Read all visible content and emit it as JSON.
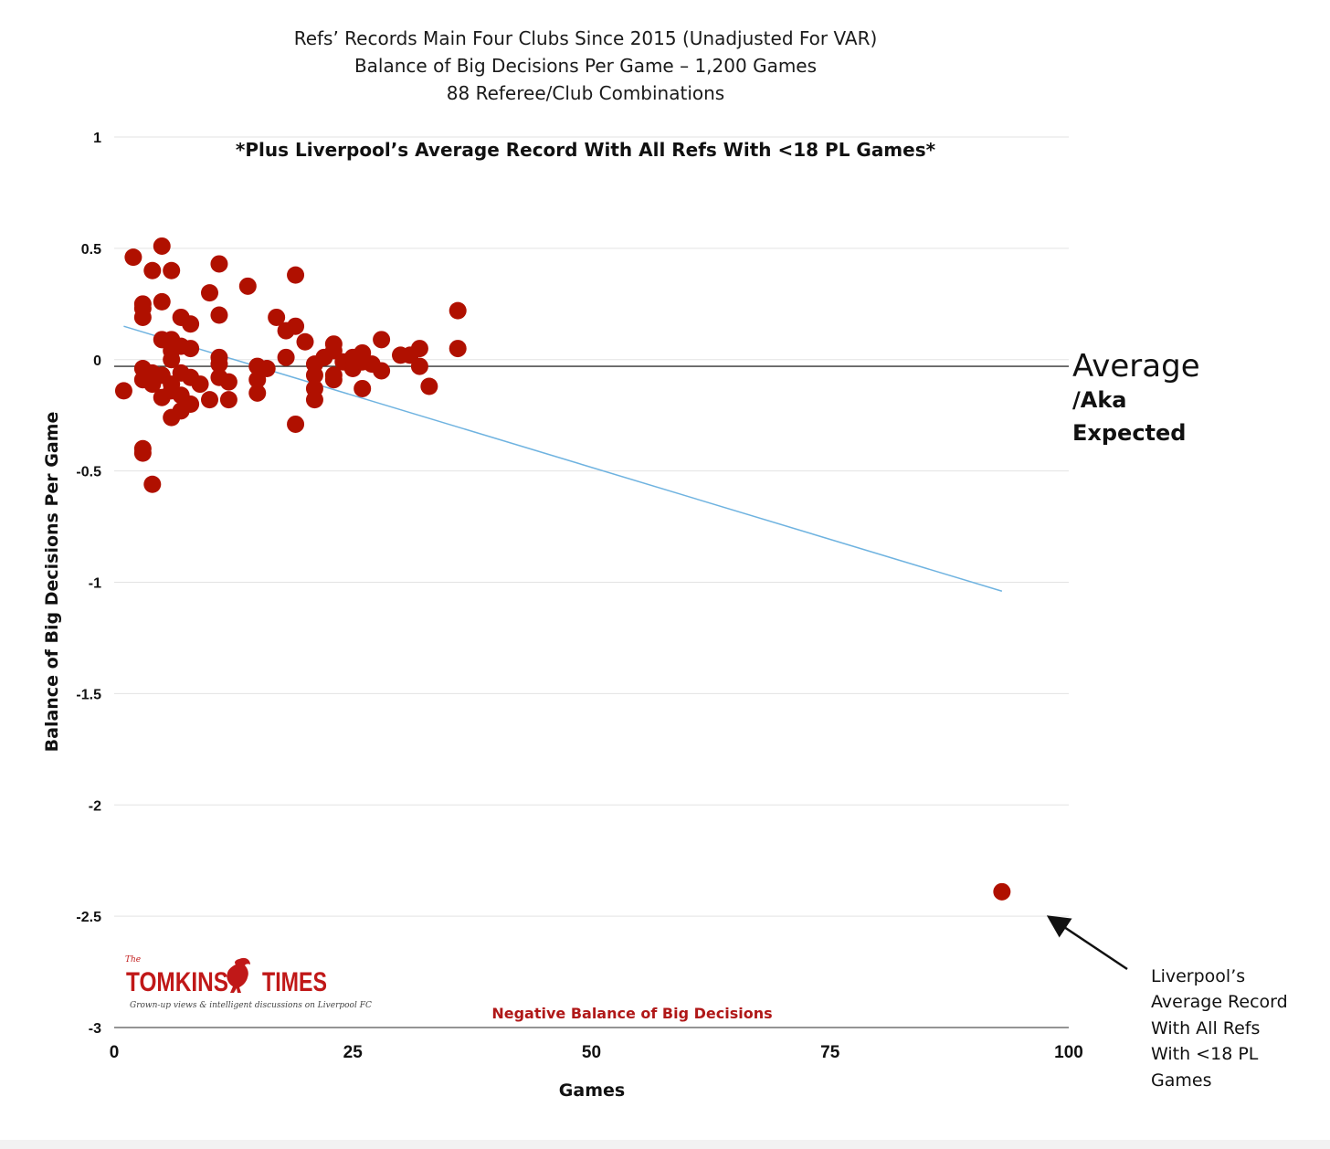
{
  "chart_data": {
    "type": "scatter",
    "title_lines": [
      "Refs’ Records Main Four Clubs Since 2015 (Unadjusted For VAR)",
      "Balance of Big Decisions Per Game – 1,200 Games",
      "88 Referee/Club Combinations"
    ],
    "subtitle": "*Plus Liverpool’s Average Record With All Refs With <18 PL Games*",
    "xlabel": "Games",
    "ylabel": "Balance of Big Decisions Per Game",
    "xlim": [
      0,
      100
    ],
    "ylim": [
      -3,
      1
    ],
    "x_ticks": [
      0,
      25,
      50,
      75,
      100
    ],
    "y_ticks": [
      1,
      0.5,
      0,
      -0.5,
      -1,
      -1.5,
      -2,
      -2.5,
      -3
    ],
    "grid": true,
    "average_line": {
      "y": -0.03,
      "label": "Average",
      "sublabel_lines": [
        "/Aka",
        "Expected"
      ]
    },
    "trendline": {
      "x": [
        1,
        93
      ],
      "y": [
        0.15,
        -1.04
      ],
      "color": "#6fb3e0"
    },
    "marker_color": "#b01000",
    "points": [
      [
        1,
        -0.14
      ],
      [
        2,
        0.46
      ],
      [
        3,
        0.25
      ],
      [
        3,
        0.23
      ],
      [
        3,
        0.19
      ],
      [
        3,
        -0.04
      ],
      [
        3,
        -0.09
      ],
      [
        3,
        -0.4
      ],
      [
        3,
        -0.42
      ],
      [
        4,
        0.4
      ],
      [
        4,
        -0.06
      ],
      [
        4,
        -0.11
      ],
      [
        4,
        -0.56
      ],
      [
        5,
        0.51
      ],
      [
        5,
        0.26
      ],
      [
        5,
        0.09
      ],
      [
        5,
        -0.07
      ],
      [
        5,
        -0.17
      ],
      [
        6,
        0.4
      ],
      [
        6,
        0.09
      ],
      [
        6,
        0.04
      ],
      [
        6,
        0.0
      ],
      [
        6,
        -0.11
      ],
      [
        6,
        -0.14
      ],
      [
        6,
        -0.26
      ],
      [
        7,
        0.19
      ],
      [
        7,
        0.06
      ],
      [
        7,
        -0.06
      ],
      [
        7,
        -0.16
      ],
      [
        7,
        -0.23
      ],
      [
        8,
        0.16
      ],
      [
        8,
        0.05
      ],
      [
        8,
        -0.08
      ],
      [
        8,
        -0.2
      ],
      [
        9,
        -0.11
      ],
      [
        10,
        0.3
      ],
      [
        10,
        -0.18
      ],
      [
        11,
        0.43
      ],
      [
        11,
        0.2
      ],
      [
        11,
        0.01
      ],
      [
        11,
        -0.02
      ],
      [
        11,
        -0.08
      ],
      [
        12,
        -0.1
      ],
      [
        12,
        -0.18
      ],
      [
        14,
        0.33
      ],
      [
        15,
        -0.03
      ],
      [
        15,
        -0.09
      ],
      [
        15,
        -0.15
      ],
      [
        16,
        -0.04
      ],
      [
        17,
        0.19
      ],
      [
        18,
        0.13
      ],
      [
        18,
        0.01
      ],
      [
        19,
        0.38
      ],
      [
        19,
        0.15
      ],
      [
        19,
        -0.29
      ],
      [
        20,
        0.08
      ],
      [
        21,
        -0.02
      ],
      [
        21,
        -0.07
      ],
      [
        21,
        -0.13
      ],
      [
        21,
        -0.18
      ],
      [
        22,
        0.01
      ],
      [
        23,
        0.07
      ],
      [
        23,
        0.04
      ],
      [
        23,
        -0.07
      ],
      [
        23,
        -0.09
      ],
      [
        24,
        -0.01
      ],
      [
        25,
        -0.04
      ],
      [
        25,
        0.01
      ],
      [
        26,
        0.03
      ],
      [
        26,
        -0.01
      ],
      [
        26,
        -0.13
      ],
      [
        27,
        -0.02
      ],
      [
        28,
        0.09
      ],
      [
        28,
        -0.05
      ],
      [
        30,
        0.02
      ],
      [
        31,
        0.02
      ],
      [
        32,
        0.05
      ],
      [
        32,
        -0.03
      ],
      [
        33,
        -0.12
      ],
      [
        36,
        0.22
      ],
      [
        36,
        0.05
      ],
      [
        93,
        -2.39
      ]
    ],
    "annotation": {
      "lines": [
        "Liverpool’s",
        "Average Record",
        "With All Refs",
        "With <18 PL",
        "Games"
      ]
    },
    "bottom_label": "Negative Balance of Big Decisions"
  },
  "logo": {
    "the": "The",
    "left": "TOMKINS",
    "right": "TIMES",
    "tagline": "Grown-up views & intelligent discussions on Liverpool FC"
  }
}
